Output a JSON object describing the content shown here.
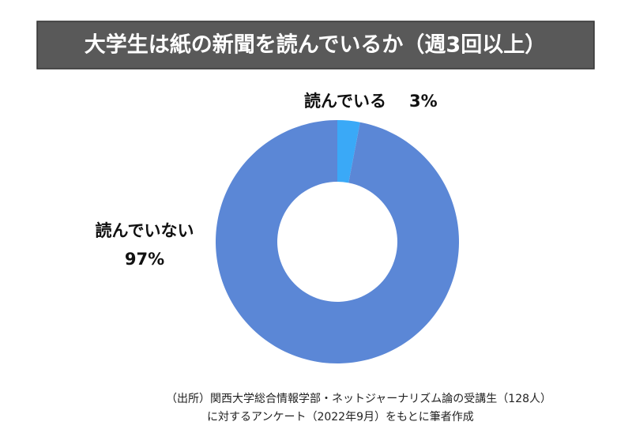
{
  "chart_data": {
    "type": "donut",
    "title": "大学生は紙の新聞を読んでいるか（週3回以上）",
    "categories": [
      "読んでいる",
      "読んでいない"
    ],
    "values": [
      3,
      97
    ],
    "value_labels": [
      "3%",
      "97%"
    ],
    "colors": [
      "#3aa9f7",
      "#5b87d6"
    ],
    "note": [
      "（出所）関西大学総合情報学部・ネットジャーナリズム論の受講生（128人）",
      "に対するアンケート（2022年9月）をもとに筆者作成"
    ]
  }
}
